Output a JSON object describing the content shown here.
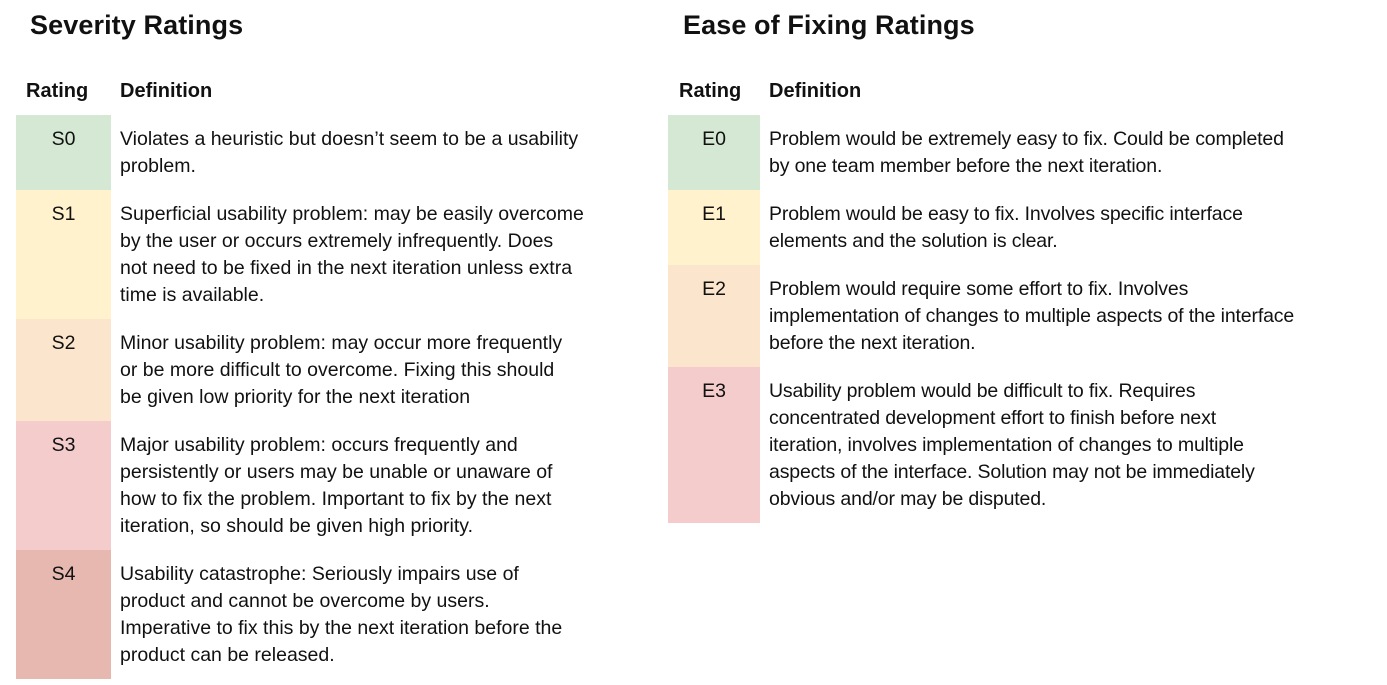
{
  "severity": {
    "title": "Severity Ratings",
    "rating_header": "Rating",
    "definition_header": "Definition",
    "rows": [
      {
        "rating": "S0",
        "color": "#d5e8d4",
        "lines": [
          "Violates a heuristic but doesn’t seem to be a usability",
          "problem."
        ]
      },
      {
        "rating": "S1",
        "color": "#fff2cc",
        "lines": [
          "Superficial usability problem: may be easily overcome",
          "by the user or occurs extremely infrequently. Does",
          "not need to be fixed in the next iteration unless extra",
          "time is available."
        ]
      },
      {
        "rating": "S2",
        "color": "#fce5cd",
        "lines": [
          "Minor usability problem: may occur more frequently",
          "or be more difficult to overcome. Fixing this should",
          "be given low priority for the next iteration"
        ]
      },
      {
        "rating": "S3",
        "color": "#f4cccc",
        "lines": [
          "Major usability problem: occurs frequently and",
          "persistently or users may be unable or unaware of",
          "how to fix the problem. Important to fix by the next",
          "iteration, so should be given high priority."
        ]
      },
      {
        "rating": "S4",
        "color": "#e6b8af",
        "lines": [
          "Usability catastrophe: Seriously impairs use of",
          "product and cannot be overcome by users.",
          "Imperative to fix this by the next iteration before the",
          "product can be released."
        ]
      }
    ]
  },
  "ease": {
    "title": "Ease of Fixing Ratings",
    "rating_header": "Rating",
    "definition_header": "Definition",
    "rows": [
      {
        "rating": "E0",
        "color": "#d5e8d4",
        "lines": [
          "Problem would be extremely easy to fix. Could be completed",
          "by one team member before the next iteration."
        ]
      },
      {
        "rating": "E1",
        "color": "#fff2cc",
        "lines": [
          "Problem would be easy to fix. Involves specific interface",
          "elements and the solution is clear."
        ]
      },
      {
        "rating": "E2",
        "color": "#fce5cd",
        "lines": [
          "Problem would require some effort to fix. Involves",
          "implementation of changes to multiple aspects of the interface",
          "before the next iteration."
        ]
      },
      {
        "rating": "E3",
        "color": "#f4cccc",
        "lines": [
          "Usability problem would be difficult to fix. Requires",
          "concentrated development effort to finish before next",
          "iteration, involves implementation of changes to multiple",
          "aspects of the interface. Solution may not be immediately",
          "obvious and/or may be disputed."
        ]
      }
    ]
  }
}
